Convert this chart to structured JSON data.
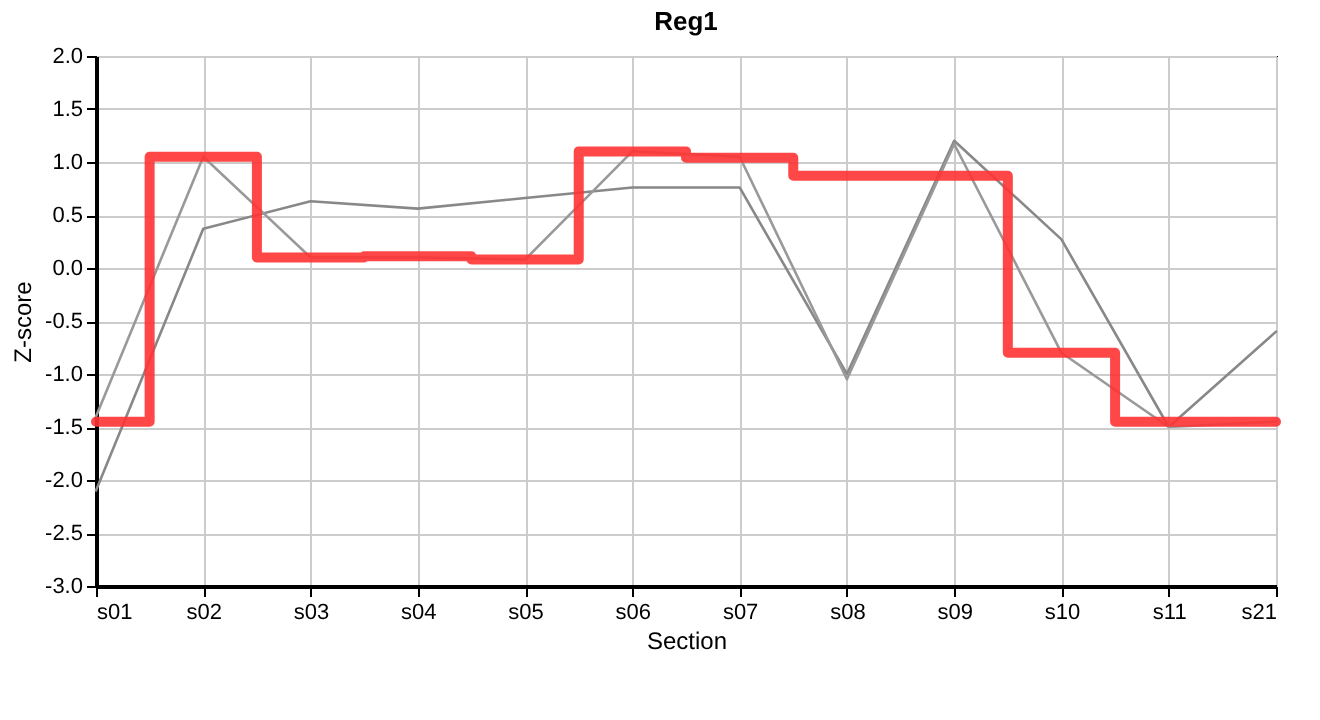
{
  "chart_data": {
    "type": "line",
    "title": "Reg1",
    "xlabel": "Section",
    "ylabel": "Z-score",
    "categories": [
      "s01",
      "s02",
      "s03",
      "s04",
      "s05",
      "s06",
      "s07",
      "s08",
      "s09",
      "s10",
      "s11",
      "s21"
    ],
    "series": [
      {
        "color": "#888888",
        "values": [
          -2.1,
          0.37,
          0.63,
          0.56,
          0.66,
          0.76,
          0.76,
          -1.0,
          1.2,
          0.27,
          -1.5,
          -0.6
        ]
      },
      {
        "color": "#999999",
        "values": [
          -1.4,
          1.05,
          0.1,
          0.1,
          0.08,
          1.1,
          1.05,
          -1.05,
          1.17,
          -0.8,
          -1.5,
          -1.45
        ]
      },
      {
        "type": "step",
        "color": "#ff3333",
        "values": [
          -1.45,
          1.05,
          0.1,
          0.11,
          0.08,
          1.1,
          1.04,
          0.87,
          0.87,
          -0.8,
          -1.45,
          -1.45
        ]
      }
    ],
    "ylim": [
      -3.0,
      2.0
    ],
    "yticks": [
      {
        "value": -3,
        "label": "-3.0"
      },
      {
        "value": -2.5,
        "label": "-2.5"
      },
      {
        "value": -2,
        "label": "-2.0"
      },
      {
        "value": -1.5,
        "label": "-1.5"
      },
      {
        "value": -1,
        "label": "-1.0"
      },
      {
        "value": -0.5,
        "label": "-0.5"
      },
      {
        "value": 0,
        "label": "0.0"
      },
      {
        "value": 0.5,
        "label": "0.5"
      },
      {
        "value": 1,
        "label": "1.0"
      },
      {
        "value": 1.5,
        "label": "1.5"
      },
      {
        "value": 2,
        "label": "2.0"
      }
    ],
    "grid": true,
    "marker": "none",
    "line_style": "solid"
  }
}
